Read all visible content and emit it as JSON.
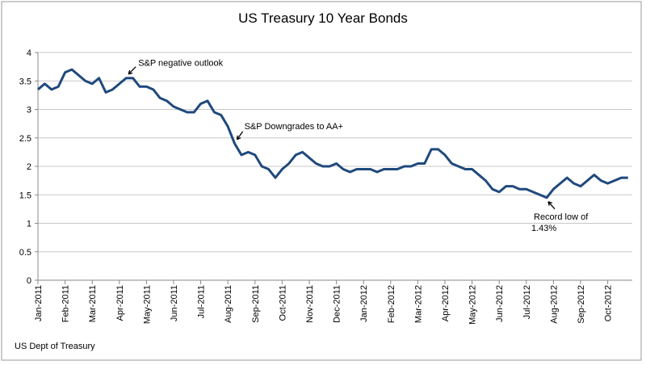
{
  "chart_data": {
    "type": "line",
    "title": "US Treasury 10 Year Bonds",
    "source": "US Dept of Treasury",
    "categories": [
      "Jan-2011",
      null,
      null,
      null,
      "Feb-2011",
      null,
      null,
      null,
      "Mar-2011",
      null,
      null,
      null,
      "Apr-2011",
      null,
      null,
      null,
      "May-2011",
      null,
      null,
      null,
      "Jun-2011",
      null,
      null,
      null,
      "Jul-2011",
      null,
      null,
      null,
      "Aug-2011",
      null,
      null,
      null,
      "Sep-2011",
      null,
      null,
      null,
      "Oct-2011",
      null,
      null,
      null,
      "Nov-2011",
      null,
      null,
      null,
      "Dec-2011",
      null,
      null,
      null,
      "Jan-2012",
      null,
      null,
      null,
      "Feb-2012",
      null,
      null,
      null,
      "Mar-2012",
      null,
      null,
      null,
      "Apr-2012",
      null,
      null,
      null,
      "May-2012",
      null,
      null,
      null,
      "Jun-2012",
      null,
      null,
      null,
      "Jul-2012",
      null,
      null,
      null,
      "Aug-2012",
      null,
      null,
      null,
      "Sep-2012",
      null,
      null,
      null,
      "Oct-2012",
      null,
      null,
      null
    ],
    "series": [
      {
        "name": "US Treasury 10 Year",
        "color": "#1f497d",
        "values": [
          3.35,
          3.45,
          3.35,
          3.4,
          3.65,
          3.7,
          3.6,
          3.5,
          3.45,
          3.55,
          3.3,
          3.35,
          3.45,
          3.55,
          3.55,
          3.4,
          3.4,
          3.35,
          3.2,
          3.15,
          3.05,
          3.0,
          2.95,
          2.95,
          3.1,
          3.15,
          2.95,
          2.9,
          2.7,
          2.4,
          2.2,
          2.25,
          2.2,
          2.0,
          1.95,
          1.8,
          1.95,
          2.05,
          2.2,
          2.25,
          2.15,
          2.05,
          2.0,
          2.0,
          2.05,
          1.95,
          1.9,
          1.95,
          1.95,
          1.95,
          1.9,
          1.95,
          1.95,
          1.95,
          2.0,
          2.0,
          2.05,
          2.05,
          2.3,
          2.3,
          2.2,
          2.05,
          2.0,
          1.95,
          1.95,
          1.85,
          1.75,
          1.6,
          1.55,
          1.65,
          1.65,
          1.6,
          1.6,
          1.55,
          1.5,
          1.45,
          1.6,
          1.7,
          1.8,
          1.7,
          1.65,
          1.75,
          1.85,
          1.75,
          1.7,
          1.75,
          1.8,
          1.8
        ]
      }
    ],
    "ylim": [
      0,
      4
    ],
    "yticks": [
      0,
      0.5,
      1,
      1.5,
      2,
      2.5,
      3,
      3.5,
      4
    ],
    "grid": true,
    "annotations": [
      {
        "text": "S&P negative outlook",
        "index": 13
      },
      {
        "text": "S&P Downgrades to AA+",
        "index": 29
      },
      {
        "lines": [
          "Record low of",
          "1.43%"
        ],
        "index": 75
      }
    ]
  }
}
